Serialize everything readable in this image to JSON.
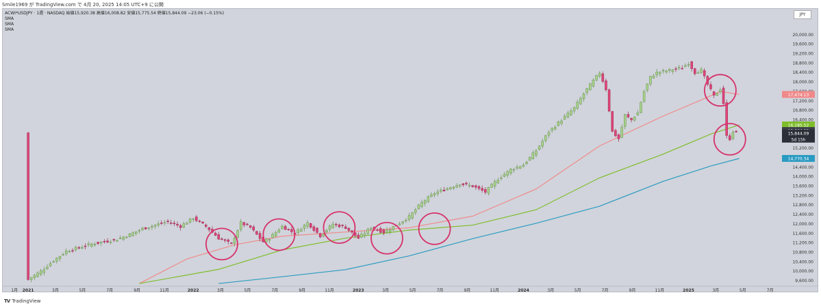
{
  "header": {
    "publisher_line": "Smile1969 が TradingView.com で 4月 20, 2025 14:05 UTC+9 に公開"
  },
  "legend": {
    "title": "ACWI*USDJPY · 1週 · NASDAQ",
    "ohlc": "始値15,920.38 高値16,008.82 安値15,775.54 終値15,844.09 −23.06 (−0.15%)",
    "indicators": [
      "SMA",
      "SMA",
      "SMA"
    ]
  },
  "currency_label": "JPY",
  "footer": {
    "logo": "TV",
    "brand": "TradingView"
  },
  "colors": {
    "up": "#a7d28b",
    "down": "#e0457a",
    "sma_short": "#f08a8a",
    "sma_mid": "#7fbd2b",
    "sma_long": "#2a9bc2",
    "circle": "#d6336c",
    "panel": "#d1d4dc"
  },
  "chart_data": {
    "type": "candlestick",
    "ylim": [
      9400,
      20600
    ],
    "y_ticks": [
      9600,
      10000,
      10800,
      11600,
      12400,
      13200,
      14000,
      14800,
      15600,
      16400,
      17200,
      18000,
      18800,
      19600,
      20000
    ],
    "y_tick_labels": [
      "9,600.00",
      "10,000.00",
      "10,800.00",
      "11,600.00",
      "12,400.00",
      "13,200.00",
      "14,000.00",
      "14,800.00",
      "15,600.00",
      "16,400.00",
      "17,200.00",
      "18,000.00",
      "18,800.00",
      "19,600.00",
      "20,000.00"
    ],
    "y_extra_ticks": [
      10400,
      11200,
      12000,
      12800,
      13600,
      14400,
      15200,
      16000,
      16800,
      17600,
      18400,
      19200
    ],
    "y_extra_labels": [
      "10,400.00",
      "11,200.00",
      "12,000.00",
      "12,800.00",
      "13,600.00",
      "14,400.00",
      "15,200.00",
      "16,000.00",
      "16,800.00",
      "17,600.00",
      "18,400.00",
      "19,200.00"
    ],
    "x_labels": [
      "1月",
      "2021",
      "3月",
      "5月",
      "7月",
      "9月",
      "11月",
      "2022",
      "3月",
      "5月",
      "7月",
      "9月",
      "11月",
      "2023",
      "3月",
      "5月",
      "7月",
      "9月",
      "11月",
      "2024",
      "3月",
      "5月",
      "7月",
      "9月",
      "11月",
      "2025",
      "3月",
      "5月",
      "7月"
    ],
    "x_bold": [
      "2021",
      "2022",
      "2023",
      "2024",
      "2025"
    ],
    "x_label_weeks": [
      -4.3,
      0,
      8.6,
      17.1,
      25.7,
      34.3,
      42.9,
      52,
      60.6,
      69.1,
      77.7,
      86.3,
      94.9,
      104,
      112.6,
      121.1,
      129.7,
      138.3,
      146.9,
      156,
      164.6,
      173.1,
      181.7,
      190.3,
      198.9,
      208,
      216.6,
      225.1,
      233.7
    ],
    "x_min_week": -8,
    "x_max_week": 237,
    "close_anchors": [
      [
        0,
        9650
      ],
      [
        4,
        10000
      ],
      [
        8,
        10450
      ],
      [
        12,
        10850
      ],
      [
        16,
        11000
      ],
      [
        20,
        11150
      ],
      [
        24,
        11250
      ],
      [
        28,
        11350
      ],
      [
        32,
        11550
      ],
      [
        36,
        11800
      ],
      [
        40,
        11950
      ],
      [
        44,
        12100
      ],
      [
        48,
        11900
      ],
      [
        52,
        12250
      ],
      [
        56,
        11900
      ],
      [
        60,
        11400
      ],
      [
        64,
        11150
      ],
      [
        67,
        12050
      ],
      [
        70,
        11850
      ],
      [
        74,
        11250
      ],
      [
        76,
        11400
      ],
      [
        80,
        11900
      ],
      [
        84,
        11600
      ],
      [
        88,
        12050
      ],
      [
        92,
        11500
      ],
      [
        96,
        12000
      ],
      [
        100,
        11850
      ],
      [
        104,
        11400
      ],
      [
        108,
        11850
      ],
      [
        112,
        11650
      ],
      [
        116,
        11950
      ],
      [
        120,
        12300
      ],
      [
        124,
        12900
      ],
      [
        128,
        13300
      ],
      [
        132,
        13500
      ],
      [
        136,
        13700
      ],
      [
        140,
        13600
      ],
      [
        144,
        13350
      ],
      [
        148,
        13900
      ],
      [
        152,
        14300
      ],
      [
        156,
        14500
      ],
      [
        160,
        15100
      ],
      [
        164,
        15900
      ],
      [
        168,
        16400
      ],
      [
        172,
        16900
      ],
      [
        176,
        17700
      ],
      [
        180,
        18400
      ],
      [
        182,
        17700
      ],
      [
        184,
        15900
      ],
      [
        186,
        15600
      ],
      [
        188,
        16600
      ],
      [
        190,
        16400
      ],
      [
        192,
        16700
      ],
      [
        194,
        17600
      ],
      [
        196,
        18200
      ],
      [
        198,
        18400
      ],
      [
        202,
        18500
      ],
      [
        206,
        18600
      ],
      [
        208,
        18800
      ],
      [
        210,
        18400
      ],
      [
        212,
        18500
      ],
      [
        214,
        17900
      ],
      [
        216,
        17400
      ],
      [
        218,
        17700
      ],
      [
        219,
        17100
      ],
      [
        220,
        15700
      ],
      [
        221,
        15600
      ],
      [
        222,
        15920
      ],
      [
        223,
        15844
      ]
    ],
    "last_week": 223,
    "sma_short": {
      "start_week": 35,
      "points": [
        [
          35,
          9480
        ],
        [
          50,
          10520
        ],
        [
          65,
          11120
        ],
        [
          80,
          11480
        ],
        [
          100,
          11660
        ],
        [
          120,
          11840
        ],
        [
          140,
          12330
        ],
        [
          160,
          13480
        ],
        [
          180,
          15300
        ],
        [
          200,
          16560
        ],
        [
          212,
          17240
        ],
        [
          218,
          17600
        ],
        [
          224,
          17474
        ]
      ],
      "last_value_label": "17,474.13"
    },
    "sma_mid": {
      "points": [
        [
          35,
          9480
        ],
        [
          60,
          10080
        ],
        [
          80,
          10900
        ],
        [
          100,
          11400
        ],
        [
          120,
          11740
        ],
        [
          140,
          11950
        ],
        [
          160,
          12600
        ],
        [
          180,
          13950
        ],
        [
          200,
          14950
        ],
        [
          215,
          15800
        ],
        [
          224,
          16185
        ]
      ],
      "last_value_label": "16,185.52"
    },
    "sma_long": {
      "points": [
        [
          60,
          9480
        ],
        [
          80,
          9770
        ],
        [
          100,
          10070
        ],
        [
          120,
          10650
        ],
        [
          140,
          11380
        ],
        [
          160,
          12030
        ],
        [
          180,
          12750
        ],
        [
          200,
          13800
        ],
        [
          215,
          14450
        ],
        [
          224,
          14770
        ]
      ],
      "last_value_label": "14,770.34"
    },
    "last_price": {
      "label": "15,844.09",
      "sub_label": "5d 15h",
      "value": 15844,
      "prev_label": "15,864.09"
    },
    "circles": [
      {
        "week": 61,
        "price": 11150
      },
      {
        "week": 79,
        "price": 11550
      },
      {
        "week": 98,
        "price": 11850
      },
      {
        "week": 113,
        "price": 11400
      },
      {
        "week": 128,
        "price": 11800
      },
      {
        "week": 218,
        "price": 17650
      },
      {
        "week": 221,
        "price": 15580
      }
    ]
  }
}
